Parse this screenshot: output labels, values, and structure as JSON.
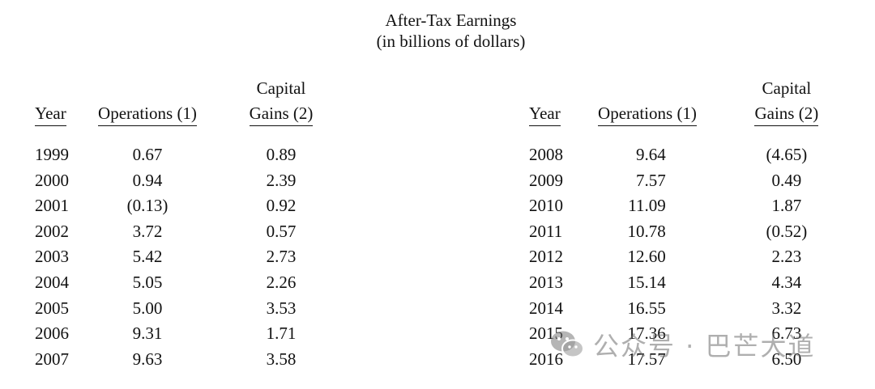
{
  "title": {
    "line1": "After-Tax Earnings",
    "line2": "(in billions of dollars)"
  },
  "headers": {
    "year": "Year",
    "operations": "Operations (1)",
    "capital_line1": "Capital",
    "capital_line2": "Gains (2)"
  },
  "rows_left": [
    {
      "year": "1999",
      "operations": "0.67",
      "capital_gains": "0.89"
    },
    {
      "year": "2000",
      "operations": "0.94",
      "capital_gains": "2.39"
    },
    {
      "year": "2001",
      "operations": "(0.13)",
      "capital_gains": "0.92"
    },
    {
      "year": "2002",
      "operations": "3.72",
      "capital_gains": "0.57"
    },
    {
      "year": "2003",
      "operations": "5.42",
      "capital_gains": "2.73"
    },
    {
      "year": "2004",
      "operations": "5.05",
      "capital_gains": "2.26"
    },
    {
      "year": "2005",
      "operations": "5.00",
      "capital_gains": "3.53"
    },
    {
      "year": "2006",
      "operations": "9.31",
      "capital_gains": "1.71"
    },
    {
      "year": "2007",
      "operations": "9.63",
      "capital_gains": "3.58"
    }
  ],
  "rows_right": [
    {
      "year": "2008",
      "operations": "9.64",
      "capital_gains": "(4.65)"
    },
    {
      "year": "2009",
      "operations": "7.57",
      "capital_gains": "0.49"
    },
    {
      "year": "2010",
      "operations": "11.09",
      "capital_gains": "1.87"
    },
    {
      "year": "2011",
      "operations": "10.78",
      "capital_gains": "(0.52)"
    },
    {
      "year": "2012",
      "operations": "12.60",
      "capital_gains": "2.23"
    },
    {
      "year": "2013",
      "operations": "15.14",
      "capital_gains": "4.34"
    },
    {
      "year": "2014",
      "operations": "16.55",
      "capital_gains": "3.32"
    },
    {
      "year": "2015",
      "operations": "17.36",
      "capital_gains": "6.73"
    },
    {
      "year": "2016",
      "operations": "17.57",
      "capital_gains": "6.50"
    }
  ],
  "watermark": {
    "text": "公众号 · 巴芒大道",
    "icon": "wechat-icon"
  }
}
